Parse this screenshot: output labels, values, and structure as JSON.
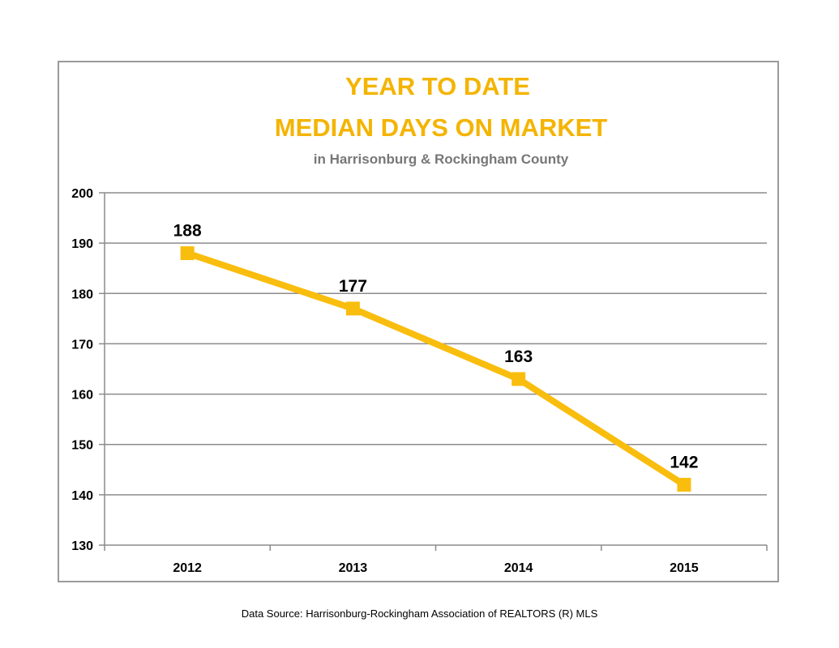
{
  "chart_data": {
    "type": "line",
    "title_lines": [
      "YEAR TO DATE",
      "MEDIAN DAYS ON MARKET"
    ],
    "subtitle": "in Harrisonburg  & Rockingham County",
    "categories": [
      "2012",
      "2013",
      "2014",
      "2015"
    ],
    "values": [
      188,
      177,
      163,
      142
    ],
    "data_labels": [
      "188",
      "177",
      "163",
      "142"
    ],
    "ylim": [
      130,
      200
    ],
    "yticks": [
      130,
      140,
      150,
      160,
      170,
      180,
      190,
      200
    ],
    "grid": true,
    "legend": "none",
    "line_color": "#F9BD0E",
    "title_color": "#F4B400"
  },
  "source_note": "Data Source: Harrisonburg-Rockingham Association of REALTORS (R) MLS"
}
